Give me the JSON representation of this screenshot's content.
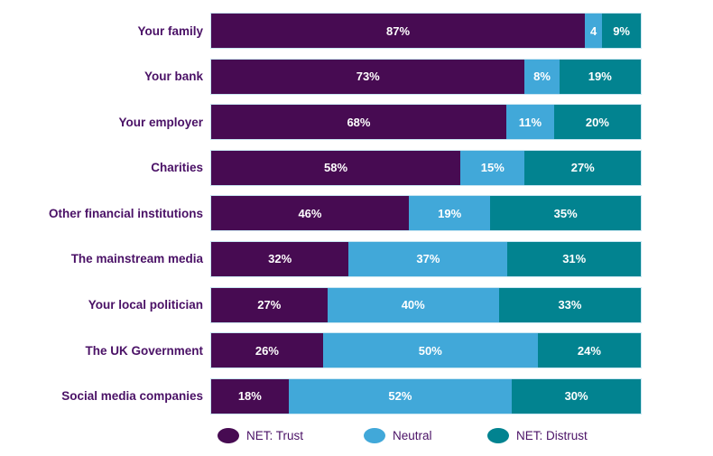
{
  "chart_data": {
    "type": "bar",
    "orientation": "horizontal",
    "stacked": true,
    "title": "",
    "xlabel": "",
    "ylabel": "",
    "xlim": [
      0,
      100
    ],
    "grid": false,
    "legend_position": "bottom",
    "categories": [
      "Your family",
      "Your bank",
      "Your employer",
      "Charities",
      "Other financial institutions",
      "The mainstream media",
      "Your local politician",
      "The UK Government",
      "Social media companies"
    ],
    "series": [
      {
        "name": "NET: Trust",
        "color": "#470b52",
        "values": [
          87,
          73,
          68,
          58,
          46,
          32,
          27,
          26,
          18
        ]
      },
      {
        "name": "Neutral",
        "color": "#41a8d9",
        "values": [
          4,
          8,
          11,
          15,
          19,
          37,
          40,
          50,
          52
        ]
      },
      {
        "name": "NET: Distrust",
        "color": "#028390",
        "values": [
          9,
          19,
          20,
          27,
          35,
          31,
          33,
          24,
          30
        ]
      }
    ]
  },
  "chart": {
    "background": "#ffffff",
    "bar_border_color": "#c9e6f2",
    "label_color": "#4a1166",
    "value_text_color": "#ffffff",
    "series_colors": {
      "NET: Trust": "#470b52",
      "Neutral": "#41a8d9",
      "NET: Distrust": "#028390"
    },
    "rows": [
      {
        "category": "Your family",
        "segments": [
          {
            "series": "NET: Trust",
            "value": 87,
            "label": "87%"
          },
          {
            "series": "Neutral",
            "value": 4,
            "label": "4"
          },
          {
            "series": "NET: Distrust",
            "value": 9,
            "label": "9%"
          }
        ]
      },
      {
        "category": "Your bank",
        "segments": [
          {
            "series": "NET: Trust",
            "value": 73,
            "label": "73%"
          },
          {
            "series": "Neutral",
            "value": 8,
            "label": "8%"
          },
          {
            "series": "NET: Distrust",
            "value": 19,
            "label": "19%"
          }
        ]
      },
      {
        "category": "Your employer",
        "segments": [
          {
            "series": "NET: Trust",
            "value": 68,
            "label": "68%"
          },
          {
            "series": "Neutral",
            "value": 11,
            "label": "11%"
          },
          {
            "series": "NET: Distrust",
            "value": 20,
            "label": "20%"
          }
        ]
      },
      {
        "category": "Charities",
        "segments": [
          {
            "series": "NET: Trust",
            "value": 58,
            "label": "58%"
          },
          {
            "series": "Neutral",
            "value": 15,
            "label": "15%"
          },
          {
            "series": "NET: Distrust",
            "value": 27,
            "label": "27%"
          }
        ]
      },
      {
        "category": "Other financial institutions",
        "segments": [
          {
            "series": "NET: Trust",
            "value": 46,
            "label": "46%"
          },
          {
            "series": "Neutral",
            "value": 19,
            "label": "19%"
          },
          {
            "series": "NET: Distrust",
            "value": 35,
            "label": "35%"
          }
        ]
      },
      {
        "category": "The mainstream media",
        "segments": [
          {
            "series": "NET: Trust",
            "value": 32,
            "label": "32%"
          },
          {
            "series": "Neutral",
            "value": 37,
            "label": "37%"
          },
          {
            "series": "NET: Distrust",
            "value": 31,
            "label": "31%"
          }
        ]
      },
      {
        "category": "Your local politician",
        "segments": [
          {
            "series": "NET: Trust",
            "value": 27,
            "label": "27%"
          },
          {
            "series": "Neutral",
            "value": 40,
            "label": "40%"
          },
          {
            "series": "NET: Distrust",
            "value": 33,
            "label": "33%"
          }
        ]
      },
      {
        "category": "The UK Government",
        "segments": [
          {
            "series": "NET: Trust",
            "value": 26,
            "label": "26%"
          },
          {
            "series": "Neutral",
            "value": 50,
            "label": "50%"
          },
          {
            "series": "NET: Distrust",
            "value": 24,
            "label": "24%"
          }
        ]
      },
      {
        "category": "Social media companies",
        "segments": [
          {
            "series": "NET: Trust",
            "value": 18,
            "label": "18%"
          },
          {
            "series": "Neutral",
            "value": 52,
            "label": "52%"
          },
          {
            "series": "NET: Distrust",
            "value": 30,
            "label": "30%"
          }
        ]
      }
    ],
    "legend": [
      {
        "label": "NET: Trust",
        "color": "#470b52"
      },
      {
        "label": "Neutral",
        "color": "#41a8d9"
      },
      {
        "label": "NET: Distrust",
        "color": "#028390"
      }
    ]
  }
}
